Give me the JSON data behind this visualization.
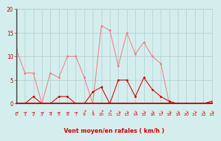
{
  "hours": [
    0,
    1,
    2,
    3,
    4,
    5,
    6,
    7,
    8,
    9,
    10,
    11,
    12,
    13,
    14,
    15,
    16,
    17,
    18,
    19,
    20,
    21,
    22,
    23
  ],
  "rafales": [
    11.5,
    6.5,
    6.5,
    0,
    6.5,
    5.5,
    10,
    10,
    5.5,
    0,
    16.5,
    15.5,
    8,
    15,
    10.5,
    13,
    10,
    8.5,
    0,
    0,
    0,
    0,
    0,
    0.5
  ],
  "vent_moyen": [
    0,
    0,
    1.5,
    0,
    0,
    1.5,
    1.5,
    0,
    0,
    2.5,
    3.5,
    0,
    5,
    5,
    1.5,
    5.5,
    3,
    1.5,
    0.5,
    0,
    0,
    0,
    0,
    0.5
  ],
  "rafales_color": "#f08080",
  "vent_moyen_color": "#cc0000",
  "bg_color": "#d4eeed",
  "grid_color": "#b0c8c8",
  "xlabel": "Vent moyen/en rafales ( km/h )",
  "xlabel_color": "#cc0000",
  "tick_color": "#cc0000",
  "ylim": [
    0,
    20
  ],
  "yticks": [
    0,
    5,
    10,
    15,
    20
  ],
  "arrow_symbols": [
    "→",
    "→",
    "→",
    "→",
    "→",
    "→",
    "→",
    "→",
    "↗",
    "↓",
    "↗",
    "↗",
    "↘",
    "↘",
    "↘",
    "↘",
    "↘",
    "↘",
    "↘",
    "↘",
    "↘",
    "↘",
    "↘",
    "↘"
  ]
}
